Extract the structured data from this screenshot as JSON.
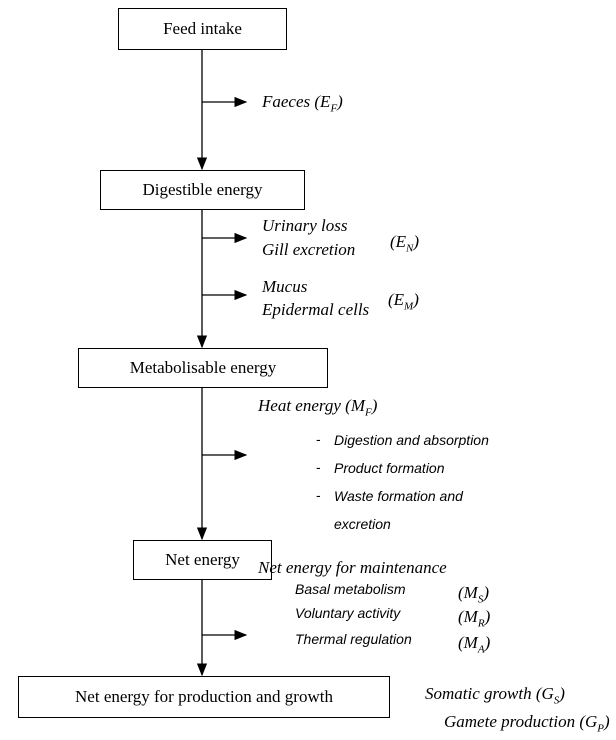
{
  "boxes": [
    "Feed intake",
    "Digestible energy",
    "Metabolisable energy",
    "Net energy",
    "Net energy for production and growth"
  ],
  "losses": [
    {
      "label": {
        "text": "Faeces (E",
        "sub": "F",
        "end": ")"
      }
    },
    {
      "lines": [
        "Urinary loss",
        "Gill excretion"
      ],
      "symbol": {
        "text": "(E",
        "sub": "N",
        "end": ")"
      }
    },
    {
      "lines": [
        "Mucus",
        "Epidermal cells"
      ],
      "symbol": {
        "text": "(E",
        "sub": "M",
        "end": ")"
      }
    }
  ],
  "heat": {
    "heading": {
      "text": "Heat energy (M",
      "sub": "F",
      "end": ")"
    },
    "items": [
      "Digestion and absorption",
      "Product formation",
      "Waste formation and excretion"
    ]
  },
  "maintenance": {
    "heading": "Net energy for maintenance",
    "items": [
      {
        "text": "Basal metabolism",
        "symbol": {
          "text": "(M",
          "sub": "S",
          "end": ")"
        }
      },
      {
        "text": "Voluntary activity",
        "symbol": {
          "text": "(M",
          "sub": "R",
          "end": ")"
        }
      },
      {
        "text": "Thermal regulation",
        "symbol": {
          "text": "(M",
          "sub": "A",
          "end": ")"
        }
      }
    ]
  },
  "growth": [
    {
      "text": "Somatic growth (G",
      "sub": "S",
      "end": ")"
    },
    {
      "text": "Gamete production (G",
      "sub": "P",
      "end": ")"
    }
  ]
}
